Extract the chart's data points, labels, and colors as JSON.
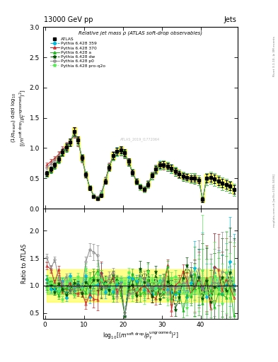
{
  "title_left": "13000 GeV pp",
  "title_right": "Jets",
  "plot_title": "Relative jet mass ρ (ATLAS soft-drop observables)",
  "ylabel_main": "(1/σ_{resum}) dσ/d log_{10}[(m^{soft drop}/p_T^{ungroomed})^2]",
  "ylabel_ratio": "Ratio to ATLAS",
  "xlabel": "log_{10}[(m^{soft drop}/p_T^{ungroomed})^2]",
  "xlim": [
    -0.5,
    49.5
  ],
  "ylim_main": [
    0.0,
    3.0
  ],
  "ylim_ratio": [
    0.4,
    2.4
  ],
  "yticks_main": [
    0.0,
    0.5,
    1.0,
    1.5,
    2.0,
    2.5,
    3.0
  ],
  "yticks_ratio": [
    0.5,
    1.0,
    1.5,
    2.0
  ],
  "xticks": [
    0,
    10,
    20,
    30,
    40
  ],
  "series": {
    "ATLAS": {
      "color": "#000000",
      "marker": "s",
      "markersize": 3.5,
      "linestyle": "none",
      "filled": true,
      "label": "ATLAS"
    },
    "359": {
      "color": "#00BBDD",
      "marker": "D",
      "markersize": 2.5,
      "linestyle": "--",
      "filled": true,
      "label": "Pythia 6.428 359"
    },
    "370": {
      "color": "#CC2222",
      "marker": "^",
      "markersize": 2.5,
      "linestyle": "-",
      "filled": false,
      "label": "Pythia 6.428 370"
    },
    "a": {
      "color": "#22BB22",
      "marker": "^",
      "markersize": 2.5,
      "linestyle": "-",
      "filled": true,
      "label": "Pythia 6.428 a"
    },
    "dw": {
      "color": "#005500",
      "marker": "*",
      "markersize": 3.5,
      "linestyle": "--",
      "filled": true,
      "label": "Pythia 6.428 dw"
    },
    "p0": {
      "color": "#888888",
      "marker": "o",
      "markersize": 2.5,
      "linestyle": "-",
      "filled": false,
      "label": "Pythia 6.428 p0"
    },
    "proq2o": {
      "color": "#55EE55",
      "marker": "*",
      "markersize": 3.5,
      "linestyle": ":",
      "filled": true,
      "label": "Pythia 6.428 pro-q2o"
    }
  },
  "x": [
    0.5,
    1.5,
    2.5,
    3.5,
    4.5,
    5.5,
    6.5,
    7.5,
    8.5,
    9.5,
    10.5,
    11.5,
    12.5,
    13.5,
    14.5,
    15.5,
    16.5,
    17.5,
    18.5,
    19.5,
    20.5,
    21.5,
    22.5,
    23.5,
    24.5,
    25.5,
    26.5,
    27.5,
    28.5,
    29.5,
    30.5,
    31.5,
    32.5,
    33.5,
    34.5,
    35.5,
    36.5,
    37.5,
    38.5,
    39.5,
    40.5,
    41.5,
    42.5,
    43.5,
    44.5,
    45.5,
    46.5,
    47.5,
    48.5
  ],
  "y_atlas": [
    0.58,
    0.65,
    0.72,
    0.82,
    0.93,
    1.02,
    1.1,
    1.28,
    1.13,
    0.84,
    0.56,
    0.34,
    0.2,
    0.16,
    0.22,
    0.45,
    0.68,
    0.88,
    0.95,
    0.97,
    0.92,
    0.78,
    0.6,
    0.45,
    0.36,
    0.32,
    0.4,
    0.55,
    0.65,
    0.72,
    0.73,
    0.7,
    0.67,
    0.62,
    0.57,
    0.54,
    0.52,
    0.5,
    0.5,
    0.47,
    0.15,
    0.5,
    0.52,
    0.49,
    0.46,
    0.42,
    0.4,
    0.37,
    0.32
  ],
  "yerr_atlas": [
    0.04,
    0.04,
    0.04,
    0.05,
    0.05,
    0.06,
    0.06,
    0.07,
    0.06,
    0.05,
    0.04,
    0.03,
    0.02,
    0.02,
    0.03,
    0.04,
    0.05,
    0.06,
    0.06,
    0.06,
    0.06,
    0.05,
    0.04,
    0.04,
    0.03,
    0.03,
    0.04,
    0.04,
    0.05,
    0.05,
    0.05,
    0.05,
    0.05,
    0.05,
    0.05,
    0.05,
    0.05,
    0.05,
    0.05,
    0.05,
    0.04,
    0.07,
    0.07,
    0.07,
    0.07,
    0.07,
    0.07,
    0.07,
    0.07
  ],
  "y_359": [
    0.57,
    0.64,
    0.71,
    0.82,
    0.93,
    1.02,
    1.1,
    1.27,
    1.12,
    0.84,
    0.57,
    0.35,
    0.21,
    0.17,
    0.24,
    0.46,
    0.69,
    0.88,
    0.95,
    0.96,
    0.91,
    0.77,
    0.6,
    0.45,
    0.36,
    0.33,
    0.41,
    0.55,
    0.65,
    0.72,
    0.73,
    0.7,
    0.67,
    0.62,
    0.57,
    0.54,
    0.52,
    0.5,
    0.5,
    0.47,
    0.15,
    0.49,
    0.51,
    0.48,
    0.45,
    0.41,
    0.39,
    0.36,
    0.31
  ],
  "y_370": [
    0.72,
    0.78,
    0.83,
    0.9,
    0.98,
    1.04,
    1.1,
    1.25,
    1.1,
    0.82,
    0.56,
    0.35,
    0.22,
    0.18,
    0.26,
    0.48,
    0.7,
    0.88,
    0.93,
    0.95,
    0.89,
    0.76,
    0.59,
    0.45,
    0.36,
    0.33,
    0.41,
    0.55,
    0.65,
    0.71,
    0.71,
    0.69,
    0.66,
    0.61,
    0.57,
    0.54,
    0.52,
    0.5,
    0.5,
    0.47,
    0.15,
    0.49,
    0.51,
    0.48,
    0.45,
    0.41,
    0.39,
    0.36,
    0.31
  ],
  "y_a": [
    0.57,
    0.64,
    0.71,
    0.81,
    0.92,
    1.01,
    1.1,
    1.27,
    1.12,
    0.84,
    0.57,
    0.35,
    0.21,
    0.17,
    0.24,
    0.46,
    0.68,
    0.87,
    0.94,
    0.96,
    0.91,
    0.77,
    0.6,
    0.45,
    0.36,
    0.32,
    0.4,
    0.54,
    0.64,
    0.71,
    0.72,
    0.7,
    0.66,
    0.62,
    0.57,
    0.54,
    0.52,
    0.5,
    0.5,
    0.47,
    0.15,
    0.49,
    0.51,
    0.48,
    0.45,
    0.41,
    0.39,
    0.36,
    0.31
  ],
  "y_dw": [
    0.57,
    0.63,
    0.7,
    0.8,
    0.91,
    1.0,
    1.09,
    1.26,
    1.11,
    0.83,
    0.56,
    0.34,
    0.21,
    0.17,
    0.24,
    0.46,
    0.68,
    0.87,
    0.94,
    0.95,
    0.9,
    0.76,
    0.59,
    0.45,
    0.35,
    0.32,
    0.4,
    0.54,
    0.64,
    0.71,
    0.72,
    0.69,
    0.66,
    0.61,
    0.57,
    0.53,
    0.51,
    0.5,
    0.49,
    0.47,
    0.15,
    0.49,
    0.51,
    0.48,
    0.45,
    0.41,
    0.39,
    0.36,
    0.31
  ],
  "y_p0": [
    0.68,
    0.74,
    0.8,
    0.88,
    0.96,
    1.03,
    1.1,
    1.26,
    1.11,
    0.83,
    0.57,
    0.35,
    0.22,
    0.18,
    0.26,
    0.47,
    0.69,
    0.88,
    0.93,
    0.95,
    0.89,
    0.76,
    0.59,
    0.45,
    0.36,
    0.32,
    0.41,
    0.55,
    0.65,
    0.71,
    0.72,
    0.69,
    0.66,
    0.61,
    0.57,
    0.54,
    0.52,
    0.5,
    0.5,
    0.47,
    0.15,
    0.49,
    0.51,
    0.48,
    0.45,
    0.41,
    0.39,
    0.36,
    0.31
  ],
  "y_proq2o": [
    0.57,
    0.64,
    0.71,
    0.81,
    0.92,
    1.01,
    1.1,
    1.27,
    1.12,
    0.84,
    0.57,
    0.35,
    0.21,
    0.17,
    0.24,
    0.46,
    0.68,
    0.87,
    0.94,
    0.96,
    0.91,
    0.77,
    0.6,
    0.45,
    0.36,
    0.32,
    0.4,
    0.54,
    0.64,
    0.71,
    0.72,
    0.7,
    0.66,
    0.62,
    0.57,
    0.54,
    0.52,
    0.5,
    0.5,
    0.47,
    0.15,
    0.49,
    0.51,
    0.48,
    0.45,
    0.41,
    0.39,
    0.36,
    0.31
  ],
  "yerr_mc": [
    0.04,
    0.04,
    0.04,
    0.05,
    0.05,
    0.06,
    0.06,
    0.08,
    0.07,
    0.06,
    0.05,
    0.04,
    0.03,
    0.03,
    0.04,
    0.05,
    0.06,
    0.07,
    0.07,
    0.07,
    0.06,
    0.06,
    0.05,
    0.05,
    0.05,
    0.05,
    0.06,
    0.06,
    0.07,
    0.07,
    0.07,
    0.07,
    0.07,
    0.07,
    0.07,
    0.07,
    0.07,
    0.08,
    0.08,
    0.08,
    0.05,
    0.1,
    0.1,
    0.1,
    0.1,
    0.1,
    0.1,
    0.1,
    0.1
  ],
  "band_green_lo": 0.85,
  "band_green_hi": 1.15,
  "band_yellow_lo": 0.7,
  "band_yellow_hi": 1.3
}
